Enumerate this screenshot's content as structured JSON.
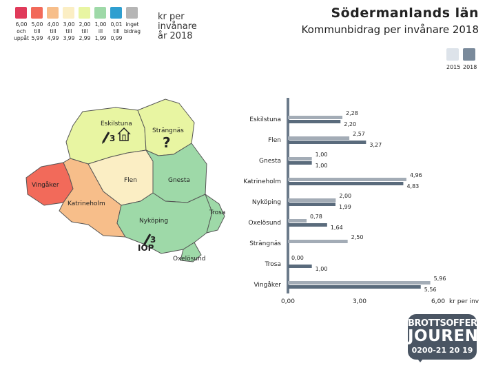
{
  "legend": {
    "items": [
      {
        "label": "6,00\noch\nuppåt",
        "color": "#e03a5a"
      },
      {
        "label": "5,00\ntill\n5,99",
        "color": "#f26a5a"
      },
      {
        "label": "4,00\ntill\n4,99",
        "color": "#f7be8a"
      },
      {
        "label": "3,00\ntill\n3,99",
        "color": "#fbeec4"
      },
      {
        "label": "2,00\ntill\n2,99",
        "color": "#e8f5a2"
      },
      {
        "label": "1,00\nill\n1,99",
        "color": "#9ed9a8"
      },
      {
        "label": "0,01\ntill\n0,99",
        "color": "#2f9fd0"
      },
      {
        "label": "inget\nbidrag",
        "color": "#b5b5b5"
      }
    ],
    "unit_note": "kr per\ninvånare\når 2018"
  },
  "header": {
    "title": "Södermanlands län",
    "subtitle": "Kommunbidrag per invånare 2018"
  },
  "years": [
    {
      "label": "2015",
      "color": "#dde3ea"
    },
    {
      "label": "2018",
      "color": "#7a8a9b"
    }
  ],
  "map": {
    "regions": [
      {
        "name": "Eskilstuna",
        "color": "#e8f5a2"
      },
      {
        "name": "Strängnäs",
        "color": "#e8f5a2"
      },
      {
        "name": "Flen",
        "color": "#fbeec4"
      },
      {
        "name": "Gnesta",
        "color": "#9ed9a8"
      },
      {
        "name": "Vingåker",
        "color": "#f26a5a"
      },
      {
        "name": "Katrineholm",
        "color": "#f7be8a"
      },
      {
        "name": "Nyköping",
        "color": "#9ed9a8"
      },
      {
        "name": "Trosa",
        "color": "#9ed9a8"
      },
      {
        "name": "Oxelösund",
        "color": "#9ed9a8"
      }
    ],
    "markers": {
      "eskilstuna_number": "3",
      "nykoping_number": "3",
      "nykoping_iop": "IOP",
      "strangnas_question": "?"
    }
  },
  "chart_data": {
    "type": "bar",
    "orientation": "horizontal",
    "categories": [
      "Eskilstuna",
      "Flen",
      "Gnesta",
      "Katrineholm",
      "Nyköping",
      "Oxelösund",
      "Strängnäs",
      "Trosa",
      "Vingåker"
    ],
    "series": [
      {
        "name": "2015",
        "color": "#a3acb6",
        "values": [
          2.28,
          2.57,
          1.0,
          4.96,
          2.0,
          0.78,
          2.5,
          0.0,
          5.96
        ]
      },
      {
        "name": "2018",
        "color": "#5a6b7c",
        "values": [
          2.2,
          3.27,
          1.0,
          4.83,
          1.99,
          1.64,
          null,
          1.0,
          5.56
        ]
      }
    ],
    "labels_2015": [
      "2,28",
      "2,57",
      "1,00",
      "4,96",
      "2,00",
      "0,78",
      "2,50",
      "0,00",
      "5,96"
    ],
    "labels_2018": [
      "2,20",
      "3,27",
      "1,00",
      "4,83",
      "1,99",
      "1,64",
      "",
      "1,00",
      "5,56"
    ],
    "xlim": [
      0,
      6
    ],
    "xticks": [
      "0,00",
      "3,00",
      "6,00"
    ],
    "xlabel": "kr per inv"
  },
  "logo": {
    "line1": "BROTTSOFFER",
    "line2": "JOUREN",
    "line3": "0200-21 20 19"
  }
}
